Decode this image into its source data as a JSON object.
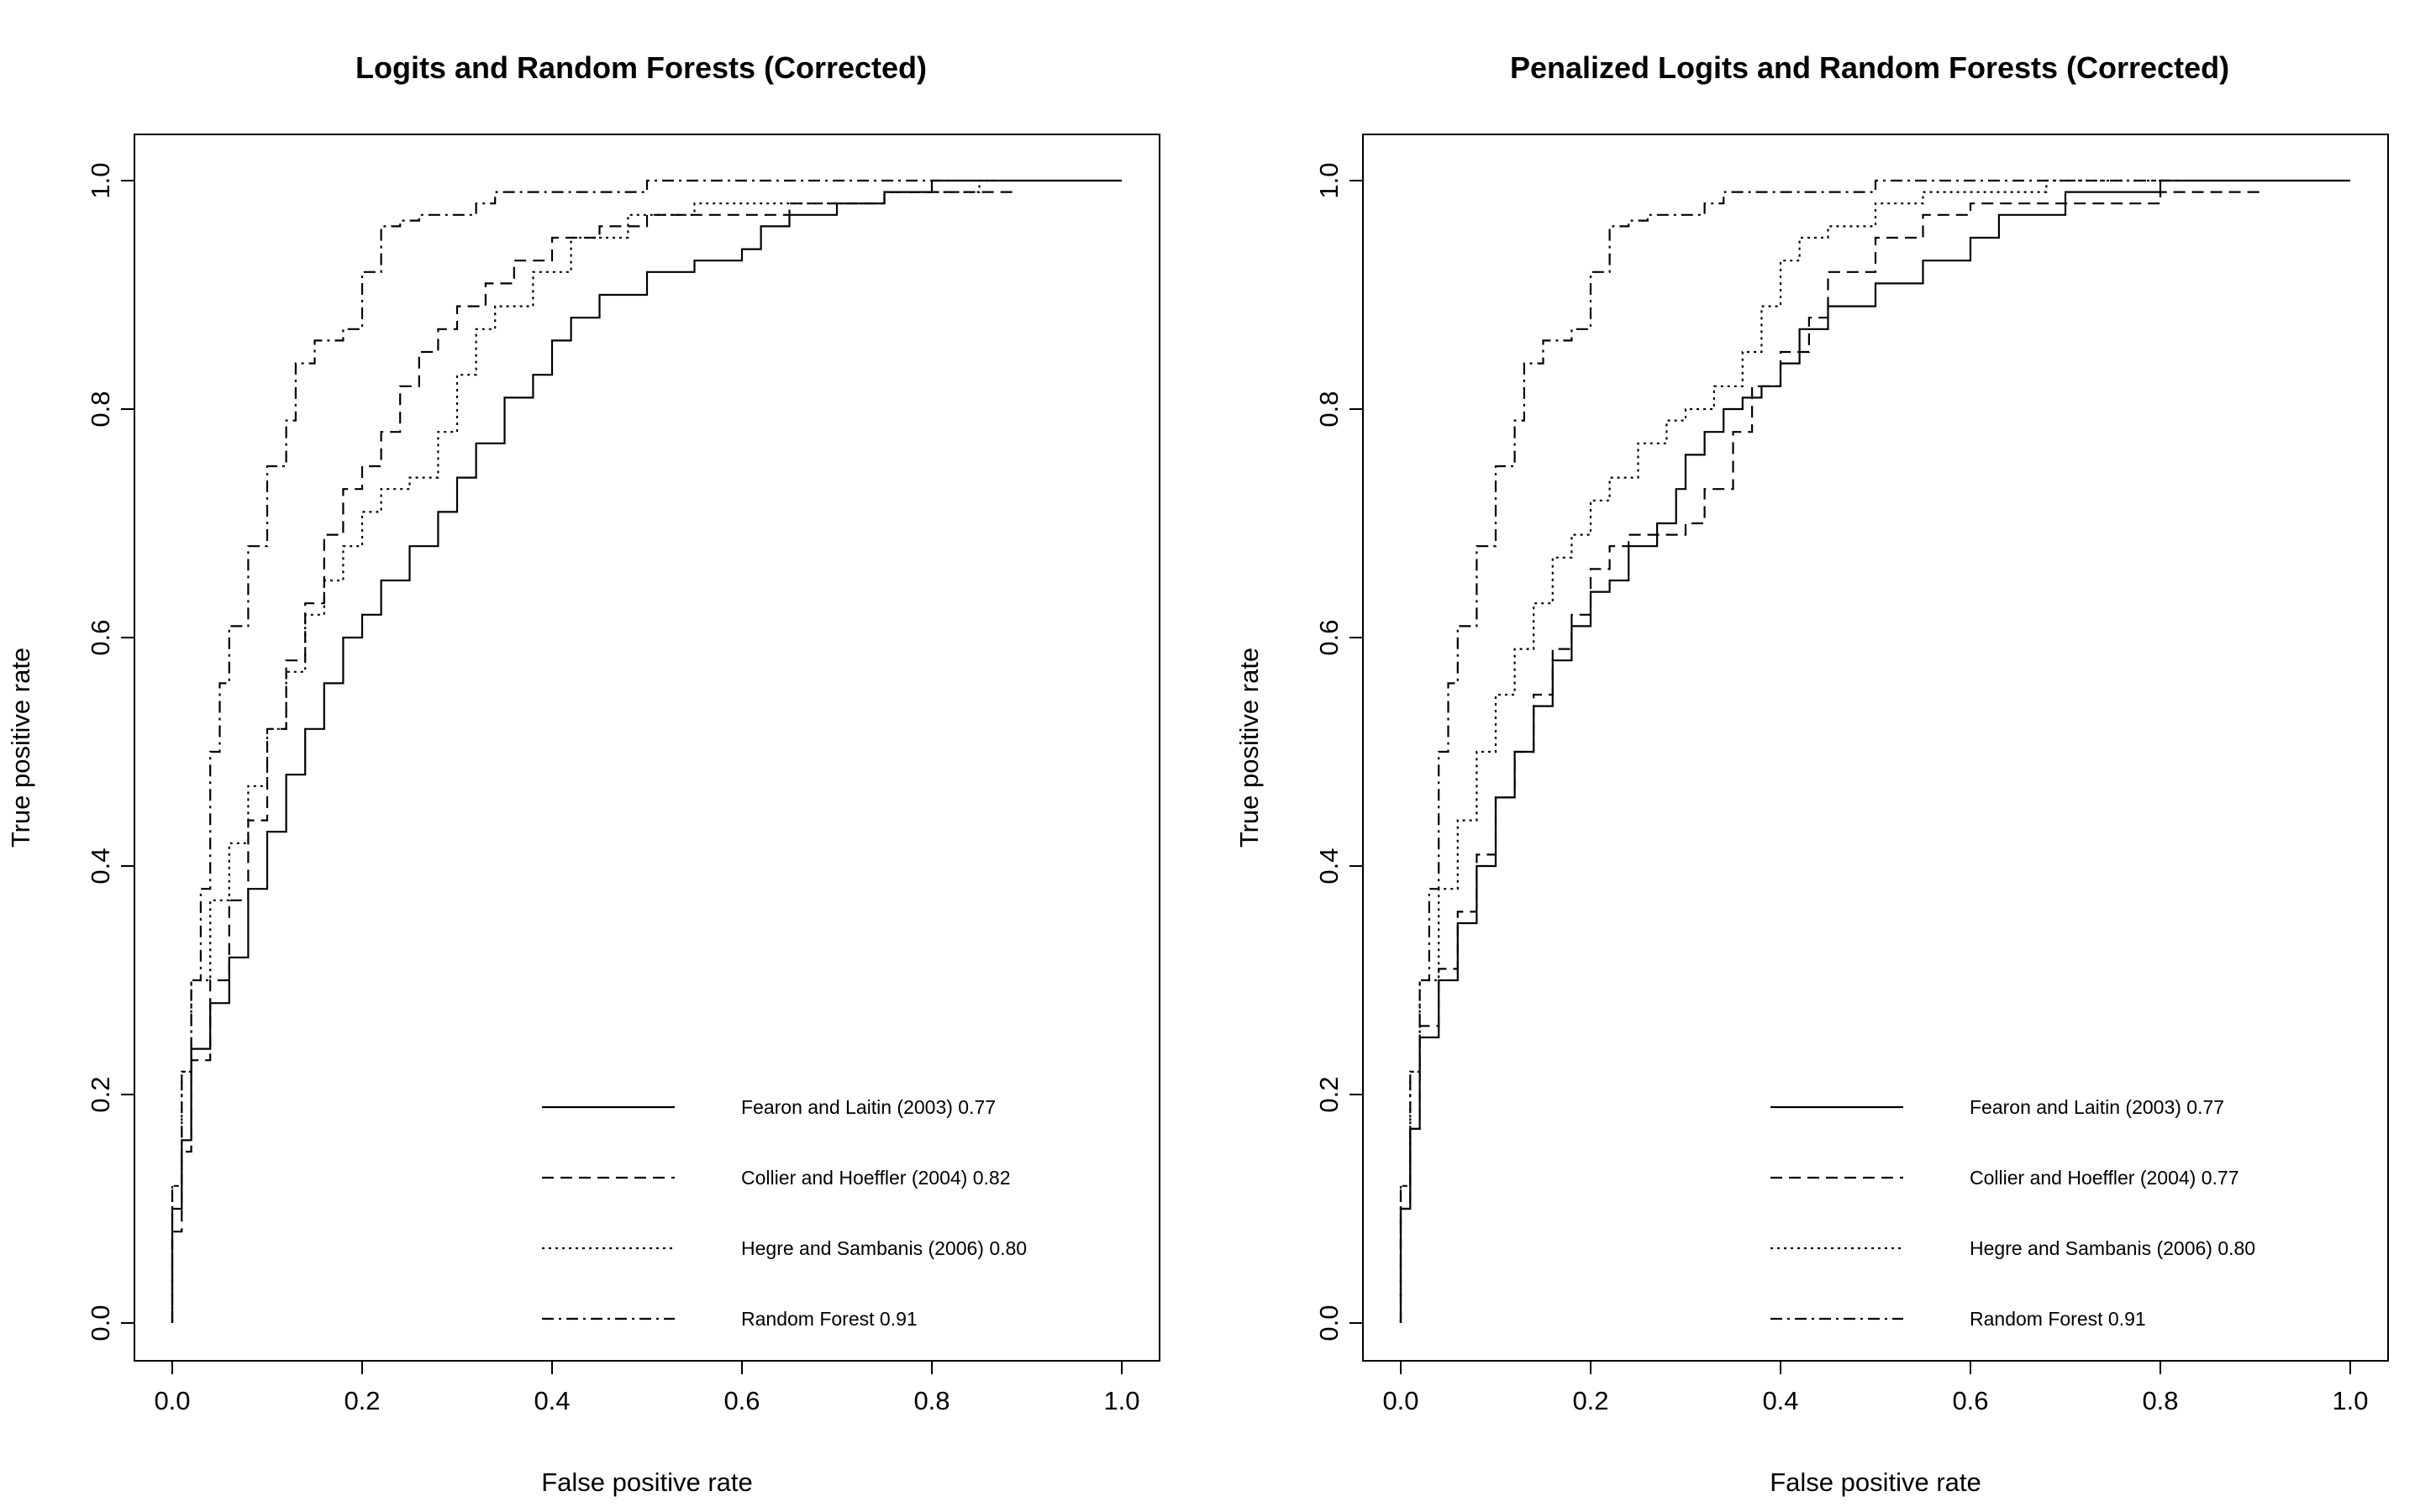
{
  "chart_data": [
    {
      "type": "line",
      "title": "Logits and Random Forests (Corrected)",
      "xlabel": "False positive rate",
      "ylabel": "True positive rate",
      "xlim": [
        0,
        1
      ],
      "ylim": [
        0,
        1
      ],
      "x_ticks": [
        "0.0",
        "0.2",
        "0.4",
        "0.6",
        "0.8",
        "1.0"
      ],
      "y_ticks": [
        "0.0",
        "0.2",
        "0.4",
        "0.6",
        "0.8",
        "1.0"
      ],
      "grid": false,
      "legend_position": "bottom-right",
      "series": [
        {
          "name": "Fearon and Laitin (2003) 0.77",
          "line_style": "solid",
          "points": [
            [
              0,
              0
            ],
            [
              0.01,
              0.1
            ],
            [
              0.02,
              0.16
            ],
            [
              0.04,
              0.24
            ],
            [
              0.06,
              0.28
            ],
            [
              0.08,
              0.32
            ],
            [
              0.1,
              0.38
            ],
            [
              0.12,
              0.43
            ],
            [
              0.14,
              0.48
            ],
            [
              0.16,
              0.52
            ],
            [
              0.18,
              0.56
            ],
            [
              0.2,
              0.6
            ],
            [
              0.22,
              0.62
            ],
            [
              0.25,
              0.65
            ],
            [
              0.28,
              0.68
            ],
            [
              0.3,
              0.71
            ],
            [
              0.32,
              0.74
            ],
            [
              0.35,
              0.77
            ],
            [
              0.38,
              0.81
            ],
            [
              0.4,
              0.83
            ],
            [
              0.42,
              0.86
            ],
            [
              0.45,
              0.88
            ],
            [
              0.5,
              0.9
            ],
            [
              0.55,
              0.92
            ],
            [
              0.6,
              0.93
            ],
            [
              0.62,
              0.94
            ],
            [
              0.65,
              0.96
            ],
            [
              0.66,
              0.97
            ],
            [
              0.7,
              0.97
            ],
            [
              0.75,
              0.98
            ],
            [
              0.8,
              0.99
            ],
            [
              0.82,
              1.0
            ],
            [
              1.0,
              1.0
            ]
          ]
        },
        {
          "name": "Collier and Hoeffler (2004) 0.82",
          "line_style": "dashed",
          "points": [
            [
              0,
              0
            ],
            [
              0.01,
              0.08
            ],
            [
              0.02,
              0.15
            ],
            [
              0.04,
              0.23
            ],
            [
              0.06,
              0.3
            ],
            [
              0.08,
              0.37
            ],
            [
              0.1,
              0.44
            ],
            [
              0.12,
              0.52
            ],
            [
              0.14,
              0.58
            ],
            [
              0.16,
              0.63
            ],
            [
              0.18,
              0.69
            ],
            [
              0.2,
              0.73
            ],
            [
              0.22,
              0.75
            ],
            [
              0.24,
              0.78
            ],
            [
              0.26,
              0.82
            ],
            [
              0.28,
              0.85
            ],
            [
              0.3,
              0.87
            ],
            [
              0.33,
              0.89
            ],
            [
              0.36,
              0.91
            ],
            [
              0.4,
              0.93
            ],
            [
              0.45,
              0.95
            ],
            [
              0.5,
              0.96
            ],
            [
              0.55,
              0.97
            ],
            [
              0.65,
              0.97
            ],
            [
              0.75,
              0.98
            ],
            [
              0.85,
              0.99
            ],
            [
              0.89,
              0.99
            ]
          ]
        },
        {
          "name": "Hegre and Sambanis (2006) 0.80",
          "line_style": "dotted",
          "points": [
            [
              0,
              0
            ],
            [
              0.01,
              0.12
            ],
            [
              0.02,
              0.22
            ],
            [
              0.04,
              0.3
            ],
            [
              0.06,
              0.37
            ],
            [
              0.08,
              0.42
            ],
            [
              0.1,
              0.47
            ],
            [
              0.12,
              0.52
            ],
            [
              0.14,
              0.57
            ],
            [
              0.16,
              0.62
            ],
            [
              0.18,
              0.65
            ],
            [
              0.2,
              0.68
            ],
            [
              0.22,
              0.71
            ],
            [
              0.25,
              0.73
            ],
            [
              0.28,
              0.74
            ],
            [
              0.3,
              0.78
            ],
            [
              0.32,
              0.83
            ],
            [
              0.34,
              0.87
            ],
            [
              0.38,
              0.89
            ],
            [
              0.42,
              0.92
            ],
            [
              0.48,
              0.95
            ],
            [
              0.55,
              0.97
            ],
            [
              0.65,
              0.98
            ],
            [
              0.75,
              0.98
            ],
            [
              0.85,
              0.99
            ],
            [
              0.87,
              1.0
            ]
          ]
        },
        {
          "name": "Random Forest 0.91",
          "line_style": "dotdash",
          "points": [
            [
              0,
              0
            ],
            [
              0.01,
              0.12
            ],
            [
              0.02,
              0.22
            ],
            [
              0.03,
              0.3
            ],
            [
              0.04,
              0.38
            ],
            [
              0.05,
              0.5
            ],
            [
              0.06,
              0.56
            ],
            [
              0.08,
              0.61
            ],
            [
              0.1,
              0.68
            ],
            [
              0.12,
              0.75
            ],
            [
              0.13,
              0.79
            ],
            [
              0.15,
              0.84
            ],
            [
              0.18,
              0.86
            ],
            [
              0.2,
              0.87
            ],
            [
              0.22,
              0.92
            ],
            [
              0.24,
              0.96
            ],
            [
              0.26,
              0.965
            ],
            [
              0.32,
              0.97
            ],
            [
              0.34,
              0.98
            ],
            [
              0.4,
              0.99
            ],
            [
              0.5,
              0.99
            ],
            [
              0.54,
              1.0
            ],
            [
              0.82,
              1.0
            ]
          ]
        }
      ]
    },
    {
      "type": "line",
      "title": "Penalized Logits and Random Forests (Corrected)",
      "xlabel": "False positive rate",
      "ylabel": "True positive rate",
      "xlim": [
        0,
        1
      ],
      "ylim": [
        0,
        1
      ],
      "x_ticks": [
        "0.0",
        "0.2",
        "0.4",
        "0.6",
        "0.8",
        "1.0"
      ],
      "y_ticks": [
        "0.0",
        "0.2",
        "0.4",
        "0.6",
        "0.8",
        "1.0"
      ],
      "grid": false,
      "legend_position": "bottom-right",
      "series": [
        {
          "name": "Fearon and Laitin (2003) 0.77",
          "line_style": "solid",
          "points": [
            [
              0,
              0
            ],
            [
              0.01,
              0.1
            ],
            [
              0.02,
              0.17
            ],
            [
              0.04,
              0.25
            ],
            [
              0.06,
              0.3
            ],
            [
              0.08,
              0.35
            ],
            [
              0.1,
              0.4
            ],
            [
              0.12,
              0.46
            ],
            [
              0.14,
              0.5
            ],
            [
              0.16,
              0.54
            ],
            [
              0.18,
              0.58
            ],
            [
              0.2,
              0.61
            ],
            [
              0.22,
              0.64
            ],
            [
              0.24,
              0.65
            ],
            [
              0.27,
              0.68
            ],
            [
              0.29,
              0.7
            ],
            [
              0.3,
              0.73
            ],
            [
              0.32,
              0.76
            ],
            [
              0.34,
              0.78
            ],
            [
              0.36,
              0.8
            ],
            [
              0.38,
              0.81
            ],
            [
              0.4,
              0.82
            ],
            [
              0.42,
              0.84
            ],
            [
              0.45,
              0.87
            ],
            [
              0.5,
              0.89
            ],
            [
              0.55,
              0.91
            ],
            [
              0.6,
              0.93
            ],
            [
              0.63,
              0.95
            ],
            [
              0.66,
              0.97
            ],
            [
              0.7,
              0.97
            ],
            [
              0.75,
              0.99
            ],
            [
              0.8,
              0.99
            ],
            [
              0.82,
              1.0
            ],
            [
              1.0,
              1.0
            ]
          ]
        },
        {
          "name": "Collier and Hoeffler (2004) 0.77",
          "line_style": "dashed",
          "points": [
            [
              0,
              0
            ],
            [
              0.01,
              0.1
            ],
            [
              0.02,
              0.17
            ],
            [
              0.04,
              0.26
            ],
            [
              0.06,
              0.31
            ],
            [
              0.08,
              0.36
            ],
            [
              0.1,
              0.41
            ],
            [
              0.12,
              0.46
            ],
            [
              0.14,
              0.5
            ],
            [
              0.16,
              0.55
            ],
            [
              0.18,
              0.59
            ],
            [
              0.2,
              0.62
            ],
            [
              0.22,
              0.66
            ],
            [
              0.24,
              0.68
            ],
            [
              0.27,
              0.69
            ],
            [
              0.3,
              0.69
            ],
            [
              0.32,
              0.7
            ],
            [
              0.35,
              0.73
            ],
            [
              0.37,
              0.78
            ],
            [
              0.4,
              0.82
            ],
            [
              0.43,
              0.85
            ],
            [
              0.45,
              0.88
            ],
            [
              0.5,
              0.92
            ],
            [
              0.55,
              0.95
            ],
            [
              0.6,
              0.97
            ],
            [
              0.65,
              0.98
            ],
            [
              0.7,
              0.98
            ],
            [
              0.8,
              0.98
            ],
            [
              0.9,
              0.99
            ],
            [
              0.91,
              0.99
            ]
          ]
        },
        {
          "name": "Hegre and Sambanis (2006) 0.80",
          "line_style": "dotted",
          "points": [
            [
              0,
              0
            ],
            [
              0.01,
              0.12
            ],
            [
              0.02,
              0.22
            ],
            [
              0.04,
              0.3
            ],
            [
              0.06,
              0.38
            ],
            [
              0.08,
              0.44
            ],
            [
              0.1,
              0.5
            ],
            [
              0.12,
              0.55
            ],
            [
              0.14,
              0.59
            ],
            [
              0.16,
              0.63
            ],
            [
              0.18,
              0.67
            ],
            [
              0.2,
              0.69
            ],
            [
              0.22,
              0.72
            ],
            [
              0.25,
              0.74
            ],
            [
              0.28,
              0.77
            ],
            [
              0.3,
              0.79
            ],
            [
              0.33,
              0.8
            ],
            [
              0.36,
              0.82
            ],
            [
              0.38,
              0.85
            ],
            [
              0.4,
              0.89
            ],
            [
              0.42,
              0.93
            ],
            [
              0.45,
              0.95
            ],
            [
              0.5,
              0.96
            ],
            [
              0.55,
              0.98
            ],
            [
              0.6,
              0.99
            ],
            [
              0.68,
              0.99
            ],
            [
              0.75,
              1.0
            ],
            [
              0.81,
              1.0
            ]
          ]
        },
        {
          "name": "Random Forest 0.91",
          "line_style": "dotdash",
          "points": [
            [
              0,
              0
            ],
            [
              0.01,
              0.12
            ],
            [
              0.02,
              0.22
            ],
            [
              0.03,
              0.3
            ],
            [
              0.04,
              0.38
            ],
            [
              0.05,
              0.5
            ],
            [
              0.06,
              0.56
            ],
            [
              0.08,
              0.61
            ],
            [
              0.1,
              0.68
            ],
            [
              0.12,
              0.75
            ],
            [
              0.13,
              0.79
            ],
            [
              0.15,
              0.84
            ],
            [
              0.18,
              0.86
            ],
            [
              0.2,
              0.87
            ],
            [
              0.22,
              0.92
            ],
            [
              0.24,
              0.96
            ],
            [
              0.26,
              0.965
            ],
            [
              0.32,
              0.97
            ],
            [
              0.34,
              0.98
            ],
            [
              0.4,
              0.99
            ],
            [
              0.5,
              0.99
            ],
            [
              0.54,
              1.0
            ],
            [
              0.82,
              1.0
            ]
          ]
        }
      ]
    }
  ]
}
